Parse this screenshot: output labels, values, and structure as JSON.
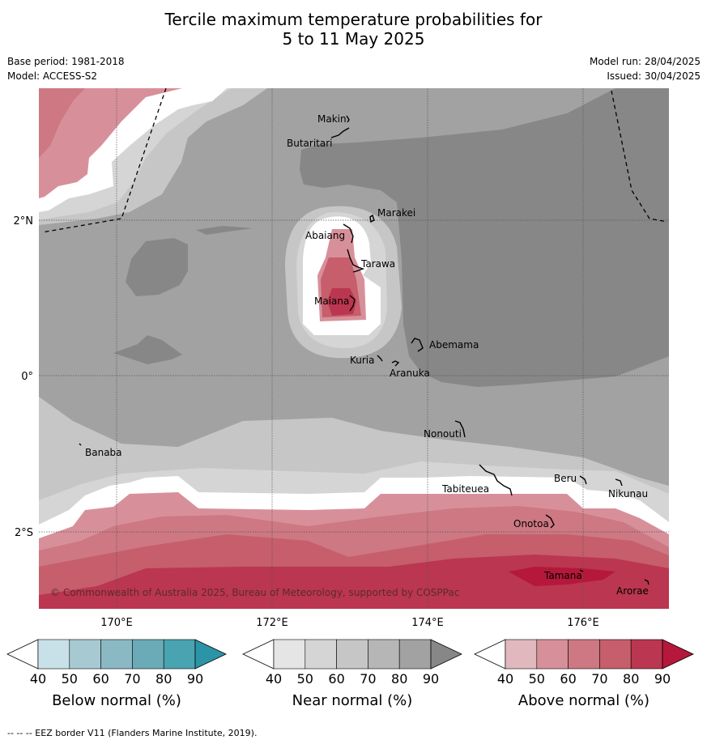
{
  "title_line1": "Tercile maximum temperature probabilities for",
  "title_line2": "5 to 11 May 2025",
  "base_period": "Base period: 1981-2018",
  "model": "Model: ACCESS-S2",
  "model_run": "Model run: 28/04/2025",
  "issued": "Issued: 30/04/2025",
  "copyright": "© Commonwealth of Australia 2025, Bureau of Meteorology, supported by COSPPac",
  "footnote": "--  --  -- EEZ border V11 (Flanders Marine Institute, 2019).",
  "axes": {
    "lat_labels": [
      "2°N",
      "0°",
      "2°S"
    ],
    "lon_labels": [
      "170°E",
      "172°E",
      "174°E",
      "176°E"
    ]
  },
  "places": {
    "makin": "Makin",
    "butaritari": "Butaritari",
    "marakei": "Marakei",
    "abaiang": "Abaiang",
    "tarawa": "Tarawa",
    "maiana": "Maiana",
    "abemama": "Abemama",
    "kuria": "Kuria",
    "aranuka": "Aranuka",
    "nonouti": "Nonouti",
    "banaba": "Banaba",
    "tabiteuea": "Tabiteuea",
    "beru": "Beru",
    "nikunau": "Nikunau",
    "onotoa": "Onotoa",
    "tamana": "Tamana",
    "arorae": "Arorae"
  },
  "colorbars": [
    {
      "name": "Below normal (%)",
      "ticks": [
        "40",
        "50",
        "60",
        "70",
        "80",
        "90"
      ],
      "colors": [
        "#ffffff",
        "#c8e1e8",
        "#a7cad2",
        "#8ab9c4",
        "#6babb8",
        "#49a4b2",
        "#2b94a6"
      ]
    },
    {
      "name": "Near normal (%)",
      "ticks": [
        "40",
        "50",
        "60",
        "70",
        "80",
        "90"
      ],
      "colors": [
        "#ffffff",
        "#e5e5e5",
        "#d5d5d5",
        "#c6c6c6",
        "#b6b6b6",
        "#a2a2a2",
        "#878787"
      ]
    },
    {
      "name": "Above normal (%)",
      "ticks": [
        "40",
        "50",
        "60",
        "70",
        "80",
        "90"
      ],
      "colors": [
        "#ffffff",
        "#e2b8bf",
        "#d7909a",
        "#cd7882",
        "#c65e6c",
        "#bb3650",
        "#b5183a"
      ]
    }
  ]
}
